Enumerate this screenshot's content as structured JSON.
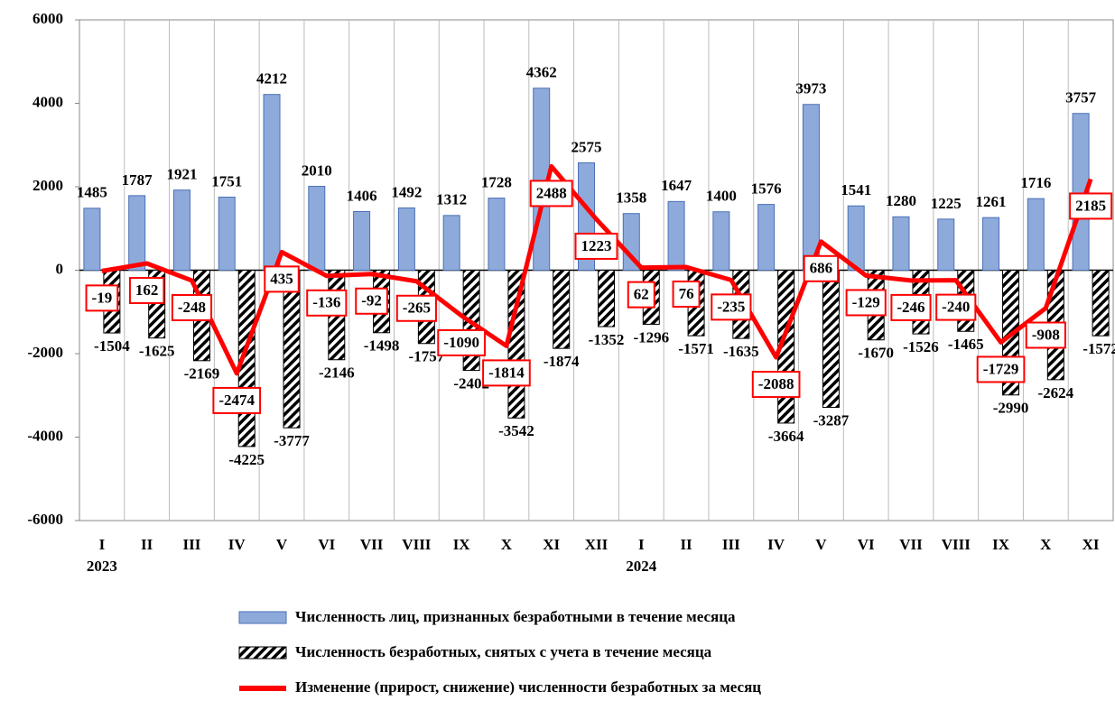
{
  "chart_data": {
    "type": "bar",
    "categories": [
      "I",
      "II",
      "III",
      "IV",
      "V",
      "VI",
      "VII",
      "VIII",
      "IX",
      "X",
      "XI",
      "XII",
      "I",
      "II",
      "III",
      "IV",
      "V",
      "VI",
      "VII",
      "VIII",
      "IX",
      "X",
      "XI"
    ],
    "years": [
      "2023",
      "2024"
    ],
    "series": [
      {
        "name": "Численность лиц, признанных безработными в течение месяца",
        "type": "bar",
        "color": "#8eaadb",
        "values": [
          1485,
          1787,
          1921,
          1751,
          4212,
          2010,
          1406,
          1492,
          1312,
          1728,
          4362,
          2575,
          1358,
          1647,
          1400,
          1576,
          3973,
          1541,
          1280,
          1225,
          1261,
          1716,
          3757
        ]
      },
      {
        "name": "Численность безработных, снятых с учета в течение месяца",
        "type": "bar",
        "color": "#000000",
        "hatch": true,
        "values": [
          -1504,
          -1625,
          -2169,
          -4225,
          -3777,
          -2146,
          -1498,
          -1757,
          -2402,
          -3542,
          -1874,
          -1352,
          -1296,
          -1571,
          -1635,
          -3664,
          -3287,
          -1670,
          -1526,
          -1465,
          -2990,
          -2624,
          -1572
        ]
      },
      {
        "name": "Изменение (прирост, снижение) численности безработных за месяц",
        "type": "line",
        "color": "#ff0000",
        "values": [
          -19,
          162,
          -248,
          -2474,
          435,
          -136,
          -92,
          -265,
          -1090,
          -1814,
          2488,
          1223,
          62,
          76,
          -235,
          -2088,
          686,
          -129,
          -246,
          -240,
          -1729,
          -908,
          2185
        ]
      }
    ],
    "ylim": [
      -6000,
      6000
    ],
    "yticks": [
      -6000,
      -4000,
      -2000,
      0,
      2000,
      4000,
      6000
    ],
    "grid": true
  }
}
